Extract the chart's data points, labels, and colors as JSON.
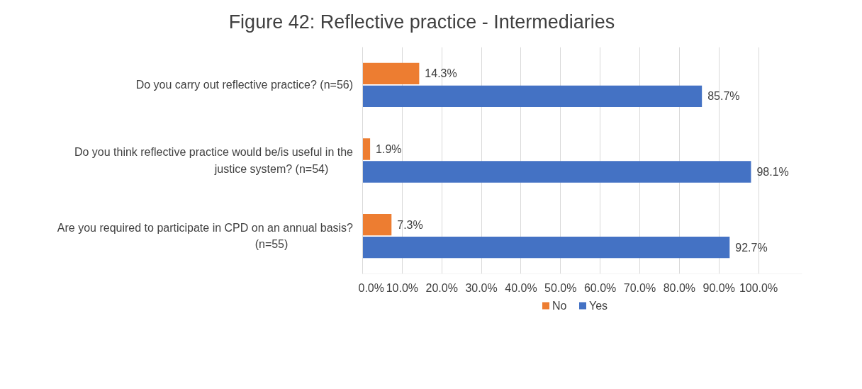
{
  "chart_data": {
    "type": "bar",
    "orientation": "horizontal",
    "title": "Figure 42: Reflective practice - Intermediaries",
    "categories": [
      "Do you carry out reflective practice? (n=56)",
      "Do you think reflective practice would be/is useful in the justice system? (n=54)",
      "Are you required to participate in CPD on an annual basis? (n=55)"
    ],
    "series": [
      {
        "name": "No",
        "color": "#ed7d31",
        "values": [
          14.3,
          1.9,
          7.3
        ],
        "value_labels": [
          "14.3%",
          "1.9%",
          "7.3%"
        ]
      },
      {
        "name": "Yes",
        "color": "#4472c4",
        "values": [
          85.7,
          98.1,
          92.7
        ],
        "value_labels": [
          "85.7%",
          "98.1%",
          "92.7%"
        ]
      }
    ],
    "xlim": [
      0,
      111
    ],
    "xticks": [
      {
        "value": 0,
        "label": "0.0%"
      },
      {
        "value": 10,
        "label": "10.0%"
      },
      {
        "value": 20,
        "label": "20.0%"
      },
      {
        "value": 30,
        "label": "30.0%"
      },
      {
        "value": 40,
        "label": "40.0%"
      },
      {
        "value": 50,
        "label": "50.0%"
      },
      {
        "value": 60,
        "label": "60.0%"
      },
      {
        "value": 70,
        "label": "70.0%"
      },
      {
        "value": 80,
        "label": "80.0%"
      },
      {
        "value": 90,
        "label": "90.0%"
      },
      {
        "value": 100,
        "label": "100.0%"
      }
    ],
    "grid": "x",
    "legend": "bottom"
  }
}
